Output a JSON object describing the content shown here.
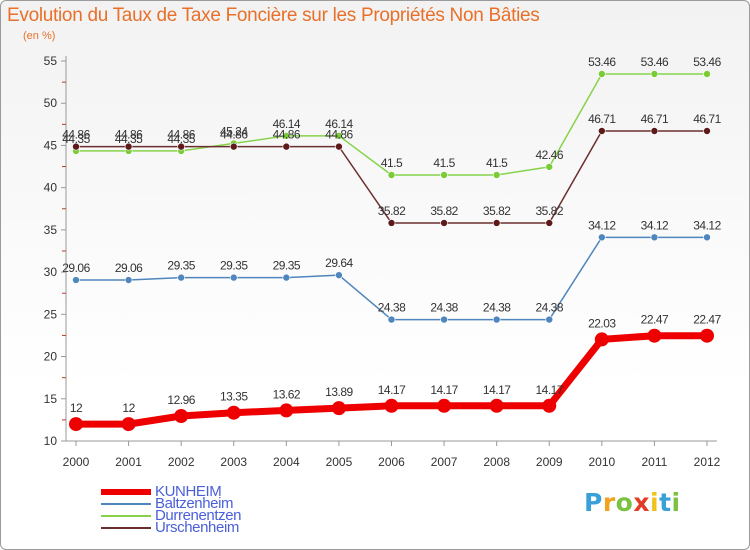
{
  "chart_data": {
    "type": "line",
    "title": "Evolution du Taux de Taxe Foncière sur les Propriétés Non Bâties",
    "subtitle": "(en %)",
    "xlabel": "",
    "ylabel": "(en %)",
    "ylim": [
      10,
      55
    ],
    "yticks": [
      10,
      15,
      20,
      25,
      30,
      35,
      40,
      45,
      50,
      55
    ],
    "grid": false,
    "legend_position": "bottom-left",
    "categories": [
      "2000",
      "2001",
      "2002",
      "2003",
      "2004",
      "2005",
      "2006",
      "2007",
      "2008",
      "2009",
      "2010",
      "2011",
      "2012"
    ],
    "series": [
      {
        "name": "Baltzenheim",
        "color": "#4f86bd",
        "marker": "#4f86bd",
        "values": [
          29.06,
          29.06,
          29.35,
          29.35,
          29.35,
          29.64,
          24.38,
          24.38,
          24.38,
          24.38,
          34.12,
          34.12,
          34.12
        ],
        "labels": [
          "29.06",
          "29.06",
          "29.35",
          "29.35",
          "29.35",
          "29.64",
          "24.38",
          "24.38",
          "24.38",
          "24.38",
          "34.12",
          "34.12",
          "34.12"
        ]
      },
      {
        "name": "Durrenentzen",
        "color": "#86d34a",
        "marker": "#7acc36",
        "values": [
          44.35,
          44.35,
          44.35,
          45.24,
          46.14,
          46.14,
          41.5,
          41.5,
          41.5,
          42.46,
          53.46,
          53.46,
          53.46
        ],
        "labels": [
          "44.35",
          "44.35",
          "44.35",
          "45.24",
          "46.14",
          "46.14",
          "41.5",
          "41.5",
          "41.5",
          "42.46",
          "53.46",
          "53.46",
          "53.46"
        ]
      },
      {
        "name": "Urschenheim",
        "color": "#6b2e2e",
        "marker": "#5e1a1a",
        "values": [
          44.86,
          44.86,
          44.86,
          44.86,
          44.86,
          44.86,
          35.82,
          35.82,
          35.82,
          35.82,
          46.71,
          46.71,
          46.71
        ],
        "labels": [
          "44.86",
          "44.86",
          "44.86",
          "44.86",
          "44.86",
          "44.86",
          "35.82",
          "35.82",
          "35.82",
          "35.82",
          "46.71",
          "46.71",
          "46.71"
        ]
      },
      {
        "name": "KUNHEIM",
        "color": "#ee0000",
        "marker": "#ee0000",
        "bold": true,
        "values": [
          12,
          12,
          12.96,
          13.35,
          13.62,
          13.89,
          14.17,
          14.17,
          14.17,
          14.17,
          22.03,
          22.47,
          22.47
        ],
        "labels": [
          "12",
          "12",
          "12.96",
          "13.35",
          "13.62",
          "13.89",
          "14.17",
          "14.17",
          "14.17",
          "14.17",
          "22.03",
          "22.47",
          "22.47"
        ]
      }
    ]
  },
  "legend": [
    {
      "label": "KUNHEIM",
      "color": "#ee0000",
      "bold": true
    },
    {
      "label": "Baltzenheim",
      "color": "#4f86bd",
      "bold": false
    },
    {
      "label": "Durrenentzen",
      "color": "#86d34a",
      "bold": false
    },
    {
      "label": "Urschenheim",
      "color": "#6b2e2e",
      "bold": false
    }
  ],
  "brand": {
    "letters": [
      "P",
      "r",
      "o",
      "x",
      "i",
      "t",
      "i"
    ],
    "colors": [
      "#3aa0d8",
      "#f2a21c",
      "#7cc242",
      "#e23b26",
      "#f2c21c",
      "#3aa0d8",
      "#7cc242"
    ]
  }
}
